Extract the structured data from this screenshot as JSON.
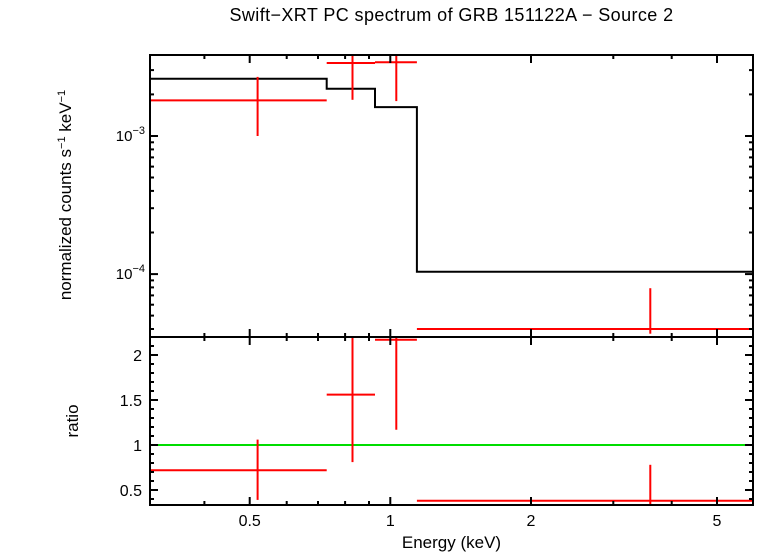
{
  "chart_data": {
    "type": "scatter",
    "title": "Swift−XRT PC spectrum of GRB 151122A − Source 2",
    "xlabel": "Energy (keV)",
    "xscale": "log",
    "xlim": [
      0.306,
      5.97
    ],
    "xticks_major": [
      {
        "value": 0.5,
        "label": "0.5"
      },
      {
        "value": 1,
        "label": "1"
      },
      {
        "value": 2,
        "label": "2"
      },
      {
        "value": 5,
        "label": "5"
      }
    ],
    "xticks_minor": [
      0.4,
      0.6,
      0.7,
      0.8,
      0.9,
      3,
      4
    ],
    "colors": {
      "data": "#ff0000",
      "model": "#000000",
      "reference": "#00dd00",
      "frame": "#000000"
    },
    "panels": [
      {
        "name": "spectrum",
        "ylabel_parts": [
          [
            "text",
            "normalized counts s"
          ],
          [
            "sup",
            "−1"
          ],
          [
            "text",
            " keV"
          ],
          [
            "sup",
            "−1"
          ]
        ],
        "yscale": "log",
        "ylim": [
          3.5e-05,
          0.00386
        ],
        "yticks_major": [
          {
            "value": 0.001,
            "base": "10",
            "exp": "−3"
          },
          {
            "value": 0.0001,
            "base": "10",
            "exp": "−4"
          }
        ],
        "model_steps": [
          {
            "e_lo": 0.306,
            "e_hi": 0.731,
            "value": 0.0026
          },
          {
            "e_lo": 0.731,
            "e_hi": 0.927,
            "value": 0.0022
          },
          {
            "e_lo": 0.927,
            "e_hi": 1.14,
            "value": 0.00162
          },
          {
            "e_lo": 1.14,
            "e_hi": 5.97,
            "value": 0.000104
          }
        ],
        "points": [
          {
            "e": 0.52,
            "e_lo": 0.306,
            "e_hi": 0.731,
            "value": 0.00181,
            "value_lo": 0.001,
            "value_hi": 0.00268
          },
          {
            "e": 0.83,
            "e_lo": 0.731,
            "e_hi": 0.927,
            "value": 0.00338,
            "value_lo": 0.00183,
            "value_hi": 0.0039
          },
          {
            "e": 1.03,
            "e_lo": 0.927,
            "e_hi": 1.14,
            "value": 0.00342,
            "value_lo": 0.00179,
            "value_hi": 0.0039
          },
          {
            "e": 3.6,
            "e_lo": 1.14,
            "e_hi": 5.97,
            "value": 4e-05,
            "value_lo": 3.7e-05,
            "value_hi": 7.9e-05
          }
        ]
      },
      {
        "name": "ratio",
        "ylabel": "ratio",
        "yscale": "linear",
        "ylim": [
          0.333,
          2.2
        ],
        "yticks_major": [
          {
            "value": 0.5,
            "label": "0.5"
          },
          {
            "value": 1,
            "label": "1"
          },
          {
            "value": 1.5,
            "label": "1.5"
          },
          {
            "value": 2,
            "label": "2"
          }
        ],
        "ytick_minor_step": 0.1,
        "reference_line": {
          "value": 1
        },
        "points": [
          {
            "e": 0.52,
            "e_lo": 0.306,
            "e_hi": 0.731,
            "value": 0.72,
            "value_lo": 0.39,
            "value_hi": 1.06
          },
          {
            "e": 0.83,
            "e_lo": 0.731,
            "e_hi": 0.927,
            "value": 1.56,
            "value_lo": 0.81,
            "value_hi": 2.3
          },
          {
            "e": 1.03,
            "e_lo": 0.927,
            "e_hi": 1.14,
            "value": 2.17,
            "value_lo": 1.17,
            "value_hi": 2.3
          },
          {
            "e": 3.6,
            "e_lo": 1.14,
            "e_hi": 5.97,
            "value": 0.38,
            "value_lo": 0.3,
            "value_hi": 0.78
          }
        ]
      }
    ]
  }
}
